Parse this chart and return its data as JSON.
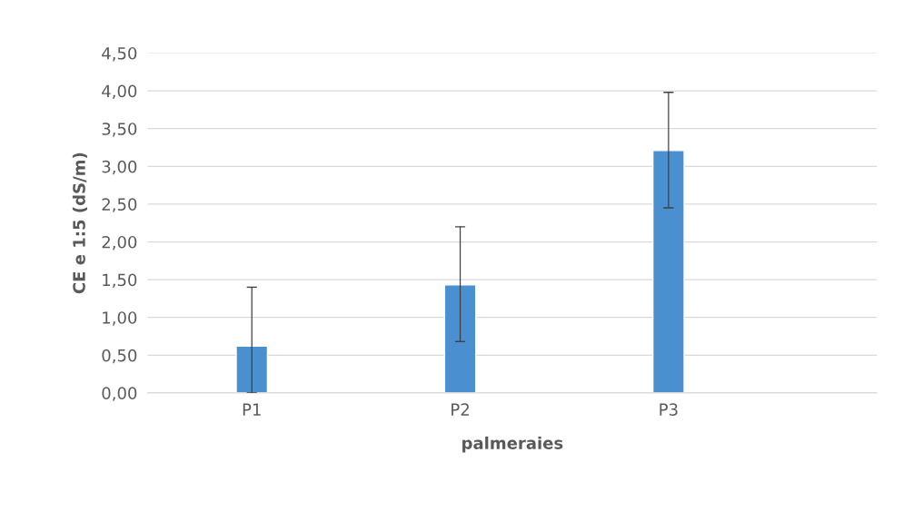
{
  "chart_data": {
    "type": "bar",
    "xlabel": "palmeraies",
    "ylabel": "CE e 1:5 (dS/m)",
    "categories": [
      "P1",
      "P2",
      "P3"
    ],
    "values": [
      0.62,
      1.43,
      3.21
    ],
    "errors": [
      [
        0,
        1.4
      ],
      [
        0.68,
        2.2
      ],
      [
        2.45,
        3.98
      ]
    ],
    "color": "#4a8fd0",
    "ylim": [
      0,
      4.5
    ],
    "yticks": [
      {
        "value": 0,
        "label": "0,00"
      },
      {
        "value": 0.5,
        "label": "0,50"
      },
      {
        "value": 1,
        "label": "1,00"
      },
      {
        "value": 1.5,
        "label": "1,50"
      },
      {
        "value": 2,
        "label": "2,00"
      },
      {
        "value": 2.5,
        "label": "2,50"
      },
      {
        "value": 3,
        "label": "3,00"
      },
      {
        "value": 3.5,
        "label": "3,50"
      },
      {
        "value": 4,
        "label": "4,00"
      },
      {
        "value": 4.5,
        "label": "4,50"
      }
    ],
    "grid": "y"
  }
}
